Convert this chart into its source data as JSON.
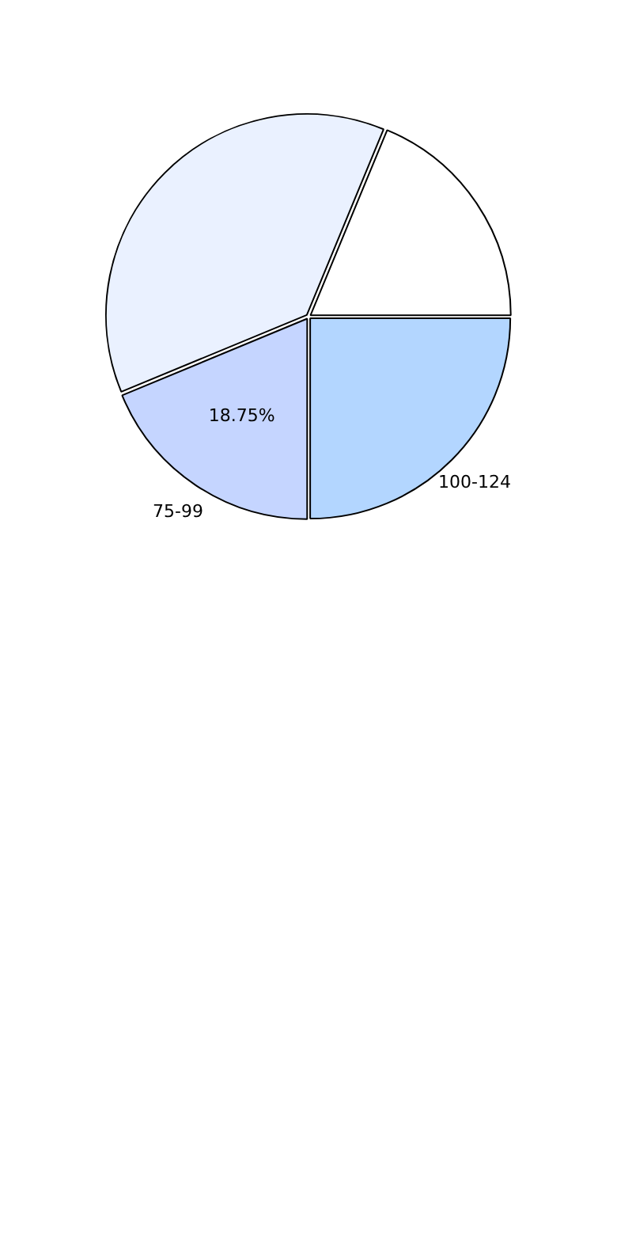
{
  "chart_data": {
    "type": "pie",
    "categories": [
      "100-124",
      "75-99",
      null,
      null
    ],
    "values": [
      25,
      18.75,
      37.5,
      18.75
    ],
    "colors": [
      "#b3d6ff",
      "#c5d5ff",
      "#eaf1ff",
      "#ffffff"
    ],
    "value_labels": [
      null,
      "18.75%",
      null,
      null
    ]
  }
}
